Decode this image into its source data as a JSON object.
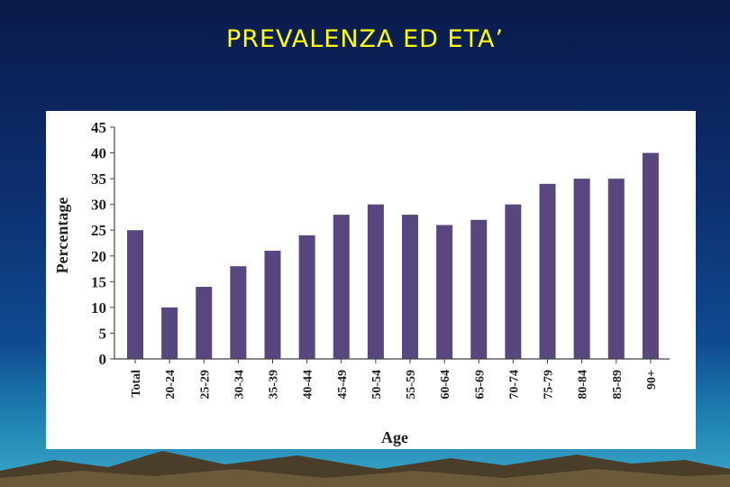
{
  "slide": {
    "title": "PREVALENZA ED ETA’"
  },
  "colors": {
    "bar": "#58477f",
    "title": "#ffff00"
  },
  "chart_data": {
    "type": "bar",
    "title": "",
    "xlabel": "Age",
    "ylabel": "Percentage",
    "ylim": [
      0,
      45
    ],
    "yticks": [
      0,
      5,
      10,
      15,
      20,
      25,
      30,
      35,
      40,
      45
    ],
    "grid": false,
    "legend": "none",
    "categories": [
      "Total",
      "20-24",
      "25-29",
      "30-34",
      "35-39",
      "40-44",
      "45-49",
      "50-54",
      "55-59",
      "60-64",
      "65-69",
      "70-74",
      "75-79",
      "80-84",
      "85-89",
      "90+"
    ],
    "values": [
      25,
      10,
      14,
      18,
      21,
      24,
      28,
      30,
      28,
      26,
      27,
      30,
      34,
      35,
      35,
      40
    ]
  }
}
